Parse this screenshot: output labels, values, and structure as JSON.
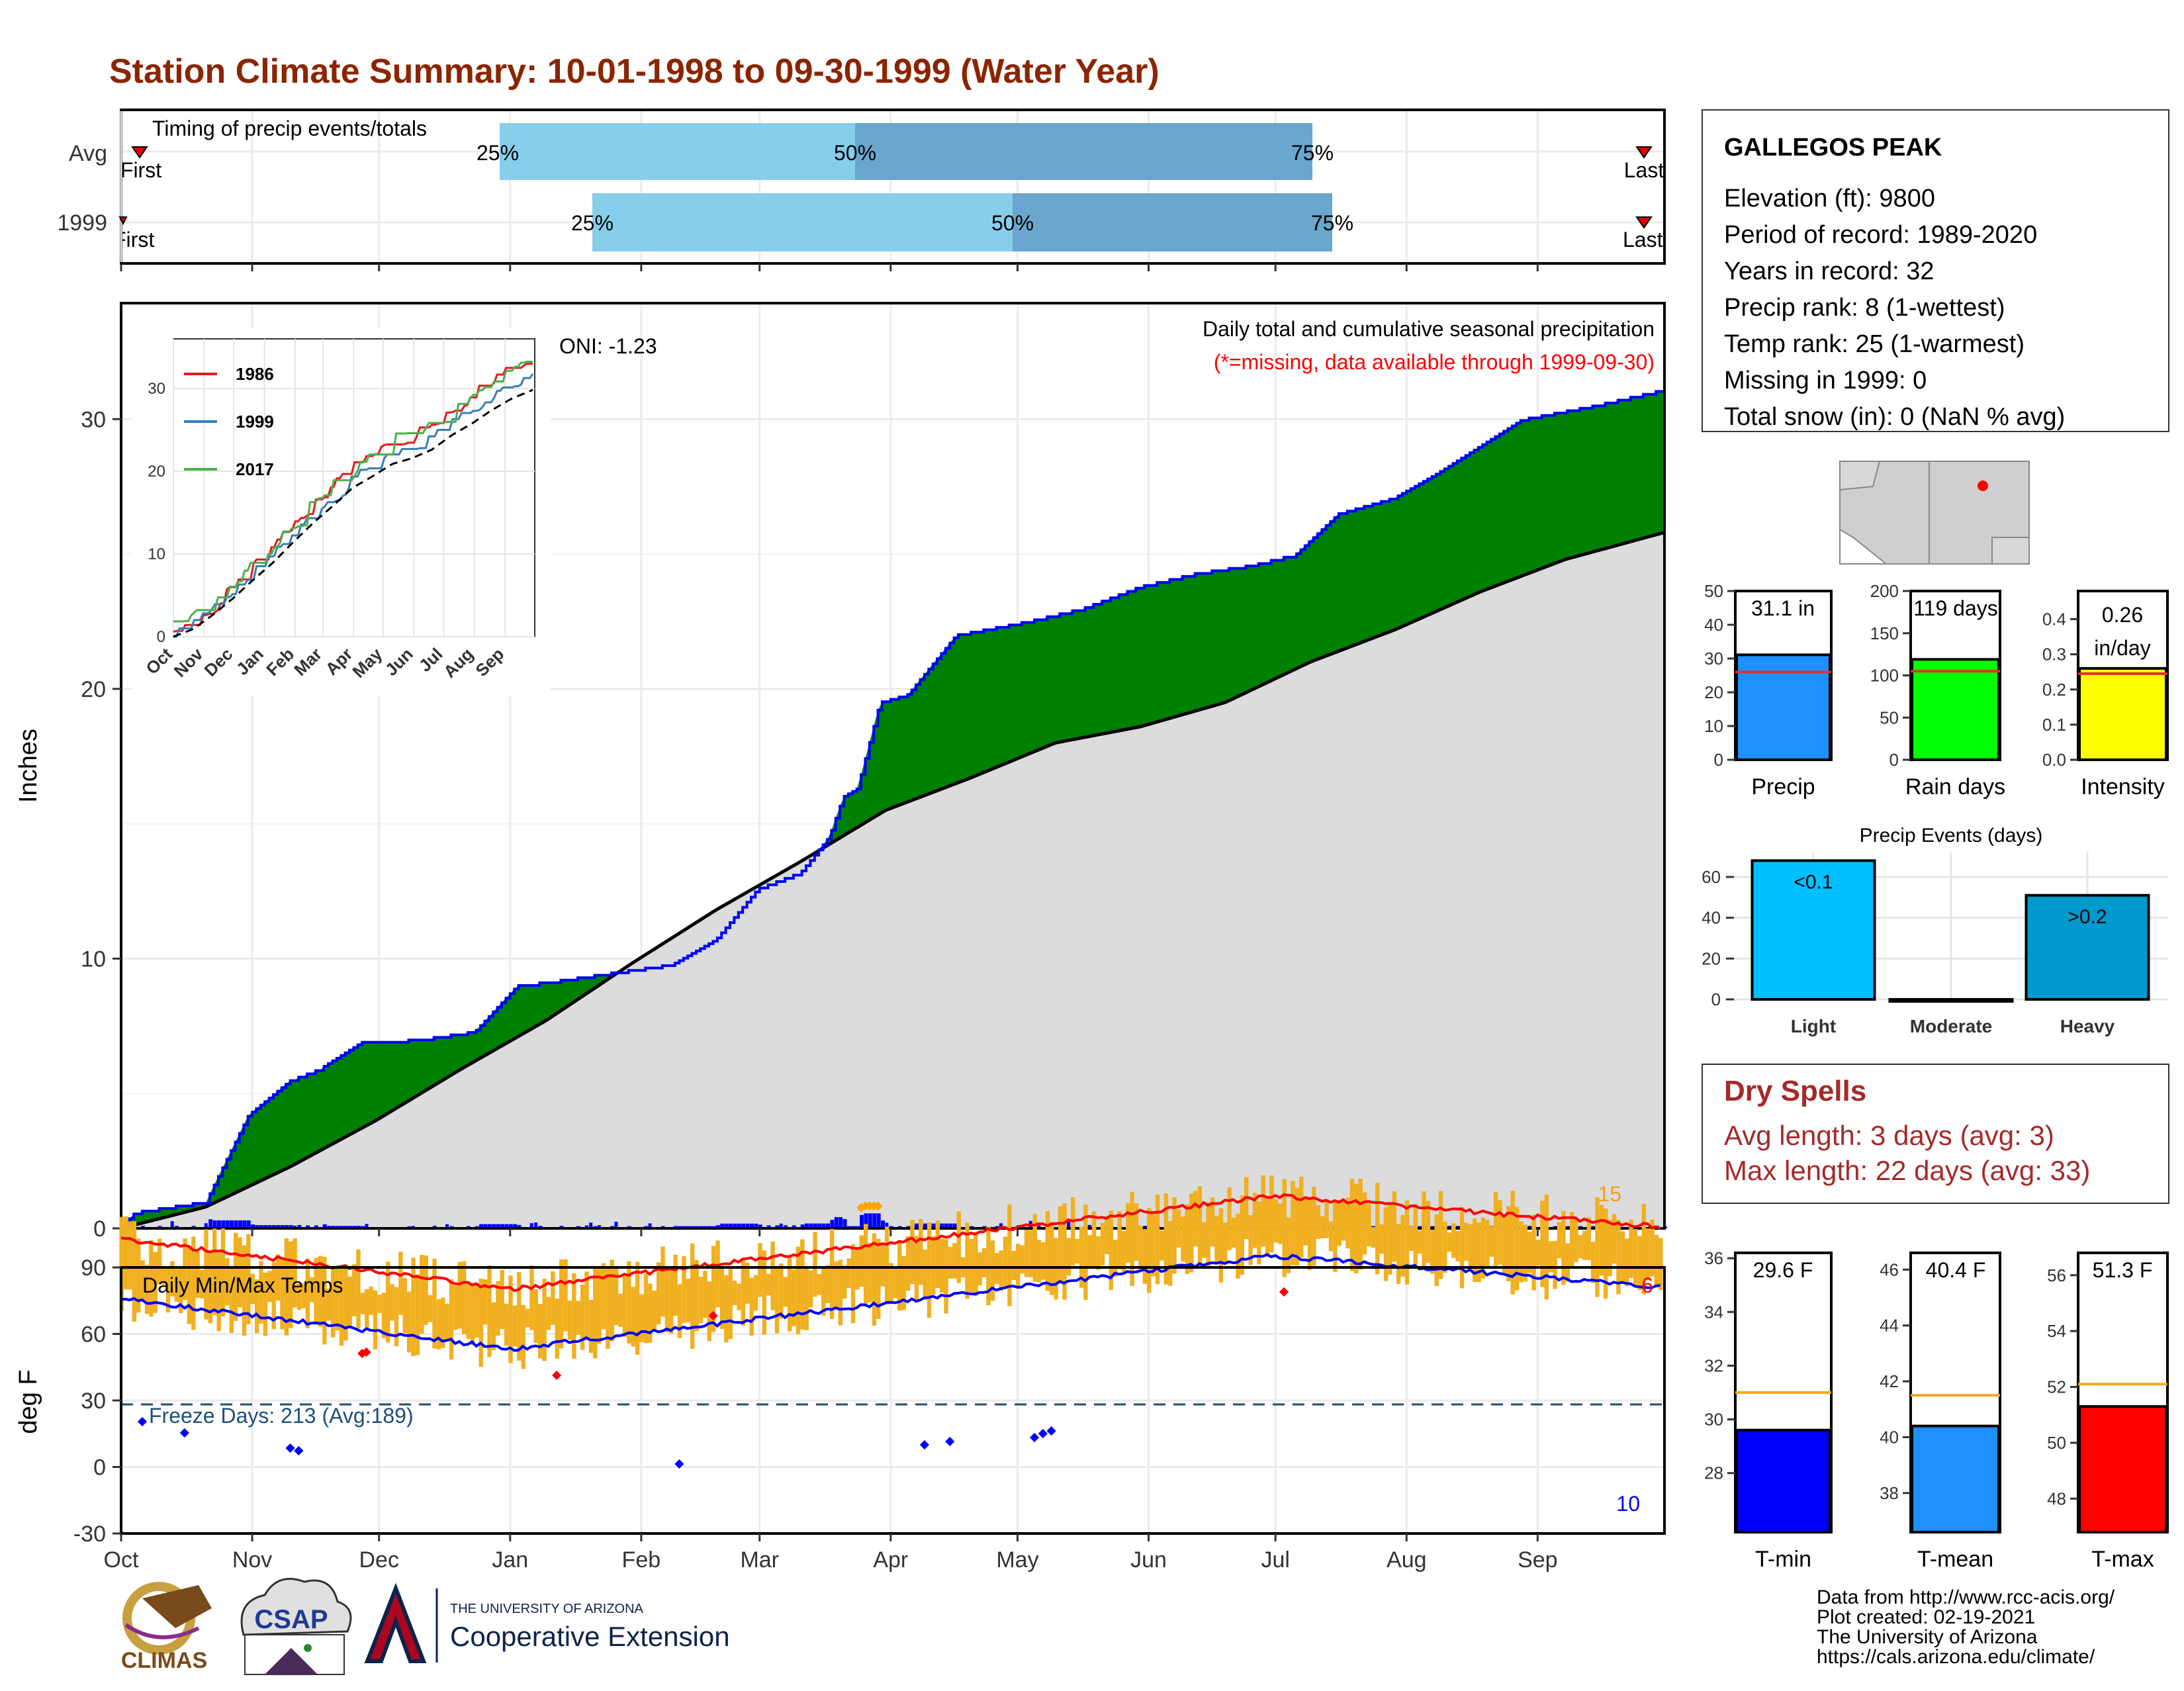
{
  "title": "Station Climate Summary: 10-01-1998 to 09-30-1999 (Water Year)",
  "colors": {
    "title": "#8B2500",
    "pct_light": "#87CEEB",
    "pct_dark": "#6AA6CD",
    "surplus": "#008000",
    "deficit": "#7B4A0A",
    "normal_fill": "#DCDCDC",
    "precip_line": "#0000FF",
    "temp_bar": "#F0B020",
    "red": "#FF0000",
    "blue": "#0000FF",
    "dry_spells": "#A52A2A"
  },
  "timing": {
    "title": "Timing of precip events/totals",
    "rows": [
      {
        "label": "Avg",
        "first": "First",
        "last": "Last",
        "p25": "25%",
        "p50": "50%",
        "p75": "75%"
      },
      {
        "label": "1999",
        "first": "First",
        "last": "Last",
        "p25": "25%",
        "p50": "50%",
        "p75": "75%"
      }
    ]
  },
  "station": {
    "name": "GALLEGOS PEAK",
    "lines": [
      "Elevation (ft): 9800",
      "Period of record: 1989-2020",
      "Years in record: 32",
      "Precip rank: 8 (1-wettest)",
      "Temp rank: 25 (1-warmest)",
      "Missing in 1999: 0",
      "Total snow (in): 0 (NaN % avg)"
    ]
  },
  "precip_panel": {
    "ylabel": "Inches",
    "header": "Daily total and cumulative seasonal precipitation",
    "missing_note": "(*=missing, data available through 1999-09-30)",
    "oni": "ONI: -1.23",
    "extreme_count": "15",
    "months": [
      "Oct",
      "Nov",
      "Dec",
      "Jan",
      "Feb",
      "Mar",
      "Apr",
      "May",
      "Jun",
      "Jul",
      "Aug",
      "Sep"
    ]
  },
  "inset": {
    "months": [
      "Oct",
      "Nov",
      "Dec",
      "Jan",
      "Feb",
      "Mar",
      "Apr",
      "May",
      "Jun",
      "Jul",
      "Aug",
      "Sep"
    ],
    "legend": [
      "1986",
      "1999",
      "2017"
    ],
    "legend_colors": [
      "#E41A1C",
      "#377EB8",
      "#4DAF4A"
    ]
  },
  "summary_bars": {
    "precip": {
      "label": "Precip",
      "value_text": "31.1 in",
      "value": 31.1,
      "avg": 26,
      "ylim": [
        0,
        50
      ],
      "ticks": [
        0,
        10,
        20,
        30,
        40,
        50
      ],
      "color": "#1E90FF"
    },
    "rain_days": {
      "label": "Rain days",
      "value_text": "119 days",
      "value": 119,
      "avg": 105,
      "ylim": [
        0,
        200
      ],
      "ticks": [
        0,
        50,
        100,
        150,
        200
      ],
      "color": "#00FF00"
    },
    "intensity": {
      "label": "Intensity",
      "value_text1": "0.26",
      "value_text2": "in/day",
      "value": 0.26,
      "avg": 0.245,
      "ylim": [
        0,
        0.48
      ],
      "ticks": [
        "0.0",
        "0.1",
        "0.2",
        "0.3",
        "0.4"
      ],
      "color": "#FFFF00"
    }
  },
  "events": {
    "title": "Precip Events (days)",
    "categories": [
      "Light",
      "Moderate",
      "Heavy"
    ],
    "values": [
      68,
      0,
      51
    ],
    "labels": [
      "<0.1",
      "",
      ">0.2"
    ],
    "colors": [
      "#00BFFF",
      "#00BFFF",
      "#009ACD"
    ],
    "ticks": [
      0,
      20,
      40,
      60
    ]
  },
  "dry_spells": {
    "title": "Dry Spells",
    "avg_line": "Avg length: 3 days (avg: 3)",
    "max_line": "Max length: 22 days (avg: 33)"
  },
  "temp_panel": {
    "ylabel": "deg F",
    "title": "Daily Min/Max Temps",
    "freeze": "Freeze Days: 213 (Avg:189)",
    "hot_count": "6",
    "cold_count": "10",
    "yticks": [
      "90",
      "60",
      "30",
      "0",
      "-30"
    ],
    "months": [
      "Oct",
      "Nov",
      "Dec",
      "Jan",
      "Feb",
      "Mar",
      "Apr",
      "May",
      "Jun",
      "Jul",
      "Aug",
      "Sep"
    ]
  },
  "temp_bars": {
    "tmin": {
      "label": "T-min",
      "value_text": "29.6 F",
      "value": 29.6,
      "avg": 31.0,
      "ylim": [
        25.8,
        36.2
      ],
      "ticks": [
        28,
        30,
        32,
        34,
        36
      ],
      "color": "#0000FF"
    },
    "tmean": {
      "label": "T-mean",
      "value_text": "40.4 F",
      "value": 40.4,
      "avg": 41.5,
      "ylim": [
        36.6,
        46.6
      ],
      "ticks": [
        38,
        40,
        42,
        44,
        46
      ],
      "color": "#1E90FF"
    },
    "tmax": {
      "label": "T-max",
      "value_text": "51.3 F",
      "value": 51.3,
      "avg": 52.1,
      "ylim": [
        46.8,
        56.8
      ],
      "ticks": [
        48,
        50,
        52,
        54,
        56
      ],
      "color": "#FF0000"
    }
  },
  "footer": {
    "lines": [
      "Data from http://www.rcc-acis.org/",
      "Plot created: 02-19-2021",
      "The University of Arizona",
      "https://cals.arizona.edu/climate/"
    ],
    "climas": "CLIMAS",
    "csap": "CSAP",
    "ua_small": "THE UNIVERSITY OF ARIZONA",
    "ua_big": "Cooperative Extension"
  },
  "chart_data": [
    {
      "type": "area",
      "title": "Daily total and cumulative seasonal precipitation",
      "ylabel": "Inches",
      "ylim": [
        0,
        34
      ],
      "x": [
        "Oct",
        "Nov",
        "Dec",
        "Jan",
        "Feb",
        "Mar",
        "Apr",
        "May",
        "Jun",
        "Jul",
        "Aug",
        "Sep"
      ],
      "series": [
        {
          "name": "1999",
          "points": [
            [
              0,
              0
            ],
            [
              5,
              0.6
            ],
            [
              30,
              1
            ],
            [
              45,
              4.2
            ],
            [
              60,
              5.5
            ],
            [
              70,
              5.9
            ],
            [
              85,
              6.9
            ],
            [
              105,
              7
            ],
            [
              125,
              7.3
            ],
            [
              140,
              9
            ],
            [
              155,
              9.2
            ],
            [
              175,
              9.5
            ],
            [
              195,
              9.8
            ],
            [
              210,
              10.7
            ],
            [
              225,
              12.6
            ],
            [
              240,
              13.2
            ],
            [
              250,
              14.5
            ],
            [
              255,
              16
            ],
            [
              260,
              16.3
            ],
            [
              268,
              19.5
            ],
            [
              278,
              19.8
            ],
            [
              295,
              22
            ],
            [
              320,
              22.5
            ],
            [
              340,
              23
            ],
            [
              360,
              23.8
            ],
            [
              380,
              24.3
            ],
            [
              400,
              24.6
            ],
            [
              415,
              25
            ],
            [
              430,
              26.5
            ],
            [
              450,
              27.1
            ],
            [
              465,
              28
            ],
            [
              480,
              29
            ],
            [
              495,
              30
            ],
            [
              520,
              30.5
            ],
            [
              545,
              31.1
            ]
          ]
        },
        {
          "name": "Avg",
          "points": [
            [
              0,
              0
            ],
            [
              30,
              0.8
            ],
            [
              60,
              2.3
            ],
            [
              90,
              4
            ],
            [
              120,
              5.9
            ],
            [
              150,
              7.7
            ],
            [
              180,
              9.8
            ],
            [
              210,
              11.8
            ],
            [
              240,
              13.6
            ],
            [
              270,
              15.5
            ],
            [
              300,
              16.7
            ],
            [
              330,
              18
            ],
            [
              360,
              18.6
            ],
            [
              390,
              19.5
            ],
            [
              420,
              21
            ],
            [
              450,
              22.2
            ],
            [
              480,
              23.6
            ],
            [
              510,
              24.8
            ],
            [
              545,
              25.8
            ]
          ]
        }
      ]
    },
    {
      "type": "bar",
      "title": "Precip Events (days)",
      "categories": [
        "Light",
        "Moderate",
        "Heavy"
      ],
      "values": [
        68,
        0,
        51
      ]
    },
    {
      "type": "bar",
      "categories": [
        "Precip",
        "Rain days",
        "Intensity"
      ],
      "values": [
        31.1,
        119,
        0.26
      ]
    },
    {
      "type": "bar",
      "categories": [
        "T-min",
        "T-mean",
        "T-max"
      ],
      "values": [
        29.6,
        40.4,
        51.3
      ]
    }
  ]
}
